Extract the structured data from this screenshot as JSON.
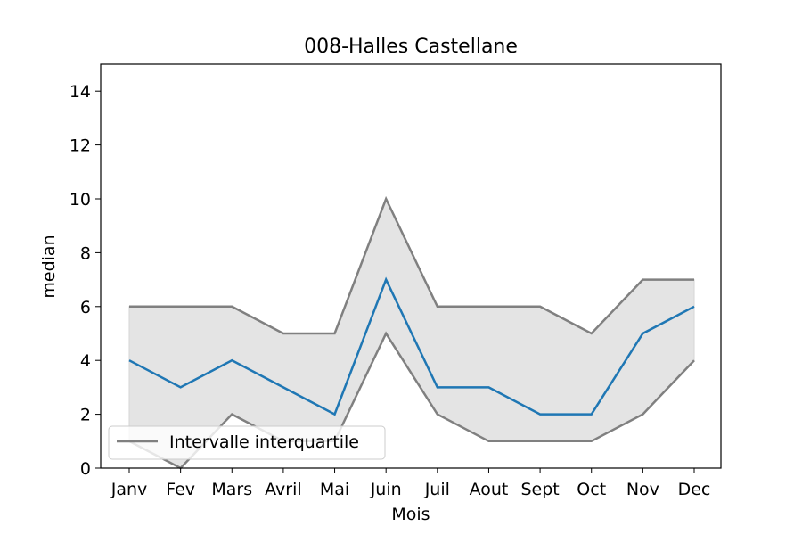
{
  "chart_data": {
    "type": "line",
    "title": "008-Halles Castellane",
    "xlabel": "Mois",
    "ylabel": "median",
    "categories": [
      "Janv",
      "Fev",
      "Mars",
      "Avril",
      "Mai",
      "Juin",
      "Juil",
      "Aout",
      "Sept",
      "Oct",
      "Nov",
      "Dec"
    ],
    "ylim": [
      0,
      15
    ],
    "yticks": [
      0,
      2,
      4,
      6,
      8,
      10,
      12,
      14
    ],
    "grid": false,
    "legend_position": "bottom-left",
    "legend_label": "Intervalle interquartile",
    "series": [
      {
        "role": "median",
        "color": "#1f77b4",
        "values": [
          4,
          3,
          4,
          3,
          2,
          7,
          3,
          3,
          2,
          2,
          5,
          6
        ]
      },
      {
        "role": "q3",
        "color": "#808080",
        "values": [
          6,
          6,
          6,
          5,
          5,
          10,
          6,
          6,
          6,
          5,
          7,
          7
        ]
      },
      {
        "role": "q1",
        "color": "#808080",
        "values": [
          1,
          0,
          2,
          1,
          1,
          5,
          2,
          1,
          1,
          1,
          2,
          4
        ]
      }
    ],
    "band_color": "#e4e4e4"
  }
}
